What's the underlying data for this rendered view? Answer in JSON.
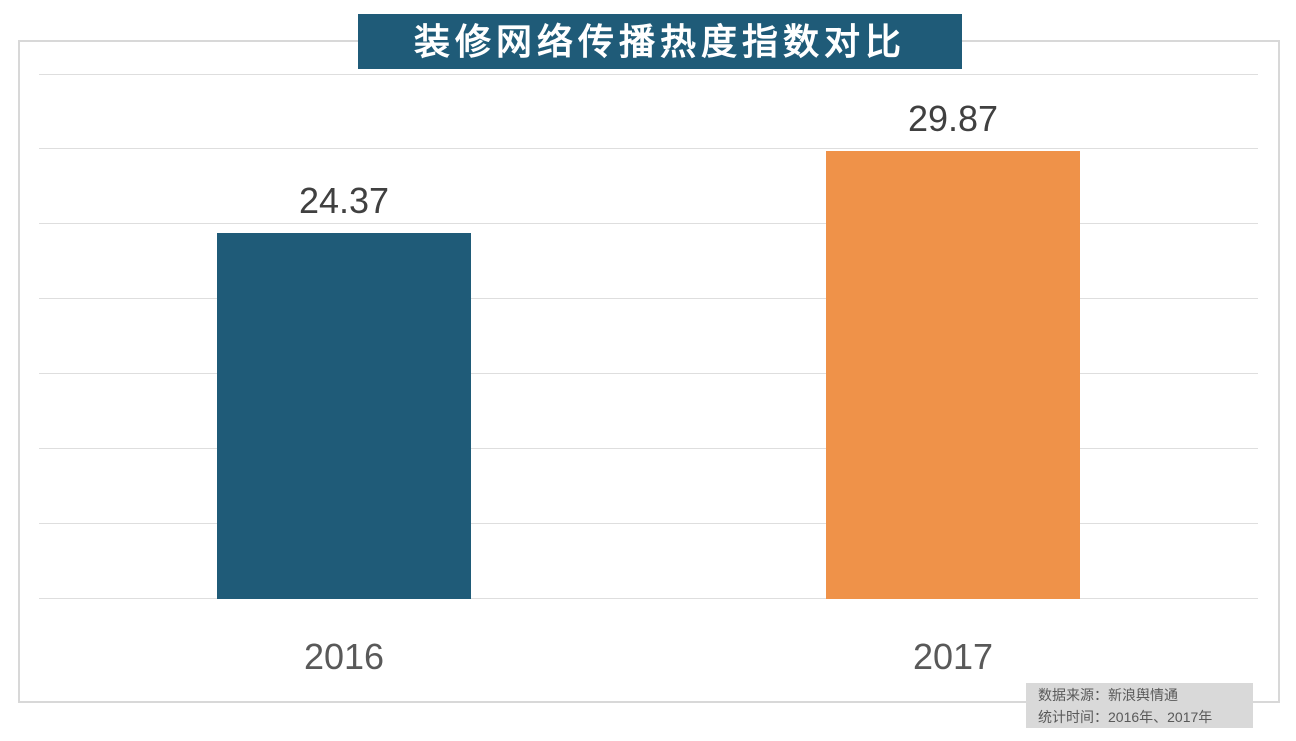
{
  "title": "装修网络传播热度指数对比",
  "source_note": {
    "line1": "数据来源：新浪舆情通",
    "line2": "统计时间：2016年、2017年"
  },
  "colors": {
    "title_bg": "#1F5B78",
    "title_text": "#FFFFFF",
    "bar_2016": "#1F5B78",
    "bar_2017": "#EF9249",
    "gridline": "#DEDEDE",
    "frame_border": "#D8D8D8",
    "value_label_text": "#404040",
    "axis_label_text": "#595959",
    "source_bg": "#D9D9D9",
    "source_text": "#595959"
  },
  "chart_data": {
    "type": "bar",
    "title": "装修网络传播热度指数对比",
    "categories": [
      "2016",
      "2017"
    ],
    "values": [
      24.37,
      29.87
    ],
    "value_labels": [
      "24.37",
      "29.87"
    ],
    "series_colors": [
      "#1F5B78",
      "#EF9249"
    ],
    "xlabel": "",
    "ylabel": "",
    "ylim": [
      0,
      35
    ],
    "grid_step": 5,
    "grid": true,
    "legend": false,
    "y_tick_labels_visible": false,
    "annotation": "数据来源：新浪舆情通 统计时间：2016年、2017年"
  }
}
